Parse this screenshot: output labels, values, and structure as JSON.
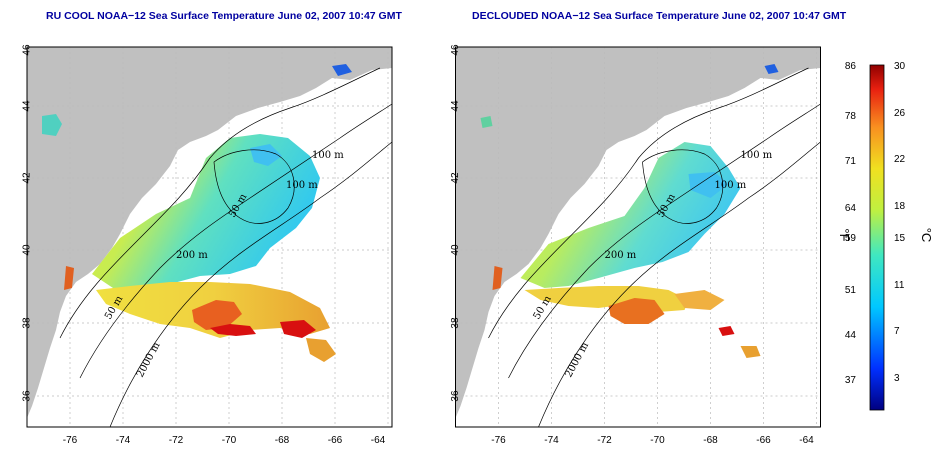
{
  "panels": [
    {
      "title": "RU COOL NOAA−12 Sea Surface Temperature June 02, 2007 10:47 GMT",
      "variant": "cool",
      "x_ticks": [
        "-76",
        "-74",
        "-72",
        "-70",
        "-68",
        "-66",
        "-64"
      ],
      "y_ticks": [
        "36",
        "38",
        "40",
        "42",
        "44",
        "46"
      ],
      "contour_labels": [
        "100 m",
        "100 m",
        "50 m",
        "200 m",
        "50 m",
        "2000 m"
      ]
    },
    {
      "title": "DECLOUDED NOAA−12 Sea Surface Temperature June 02, 2007 10:47 GMT",
      "variant": "declouded",
      "x_ticks": [
        "-76",
        "-74",
        "-72",
        "-70",
        "-68",
        "-66",
        "-64"
      ],
      "y_ticks": [
        "36",
        "38",
        "40",
        "42",
        "44",
        "46"
      ],
      "contour_labels": [
        "100 m",
        "100 m",
        "50 m",
        "200 m",
        "50 m",
        "2000 m"
      ]
    }
  ],
  "colorbar": {
    "fahrenheit_label": "°F",
    "celsius_label": "°C",
    "fahrenheit_ticks": [
      "86",
      "78",
      "71",
      "64",
      "59",
      "51",
      "44",
      "37"
    ],
    "celsius_ticks": [
      "30",
      "26",
      "22",
      "18",
      "15",
      "11",
      "7",
      "3"
    ]
  },
  "colors": {
    "land": "#c0c0c0",
    "title": "#0000a0",
    "grid": "#bbbbbb"
  }
}
